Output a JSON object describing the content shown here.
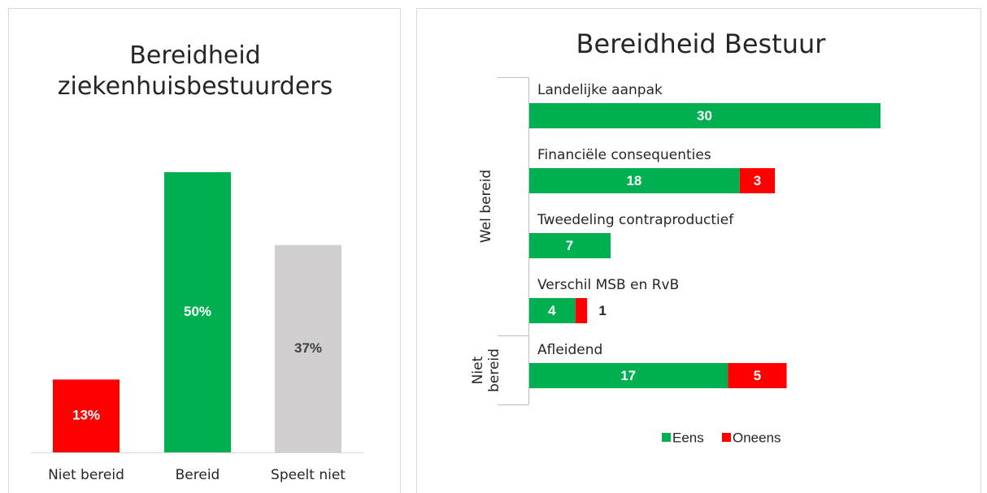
{
  "chart_data": [
    {
      "type": "bar",
      "title": "Bereidheid ziekenhuisbestuurders",
      "categories": [
        "Niet bereid",
        "Bereid",
        "Speelt niet"
      ],
      "values": [
        13,
        50,
        37
      ],
      "value_labels": [
        "13%",
        "50%",
        "37%"
      ],
      "colors": [
        "#ff0000",
        "#00b050",
        "#d0cece"
      ],
      "value_label_colors": [
        "#ffffff",
        "#ffffff",
        "#404040"
      ]
    },
    {
      "type": "stacked-barh",
      "title": "Bereidheid Bestuur",
      "groups": [
        {
          "label": "Wel bereid",
          "categories": [
            "Landelijke aanpak",
            "Financiële consequenties",
            "Tweedeling contraproductief",
            "Verschil MSB en RvB"
          ]
        },
        {
          "label": "Niet bereid",
          "categories": [
            "Afleidend"
          ]
        }
      ],
      "series": [
        {
          "name": "Eens",
          "color": "#00b050",
          "values": [
            30,
            18,
            7,
            4,
            17
          ]
        },
        {
          "name": "Oneens",
          "color": "#ff0000",
          "values": [
            null,
            3,
            null,
            1,
            5
          ]
        }
      ],
      "legend": "bottom"
    }
  ]
}
